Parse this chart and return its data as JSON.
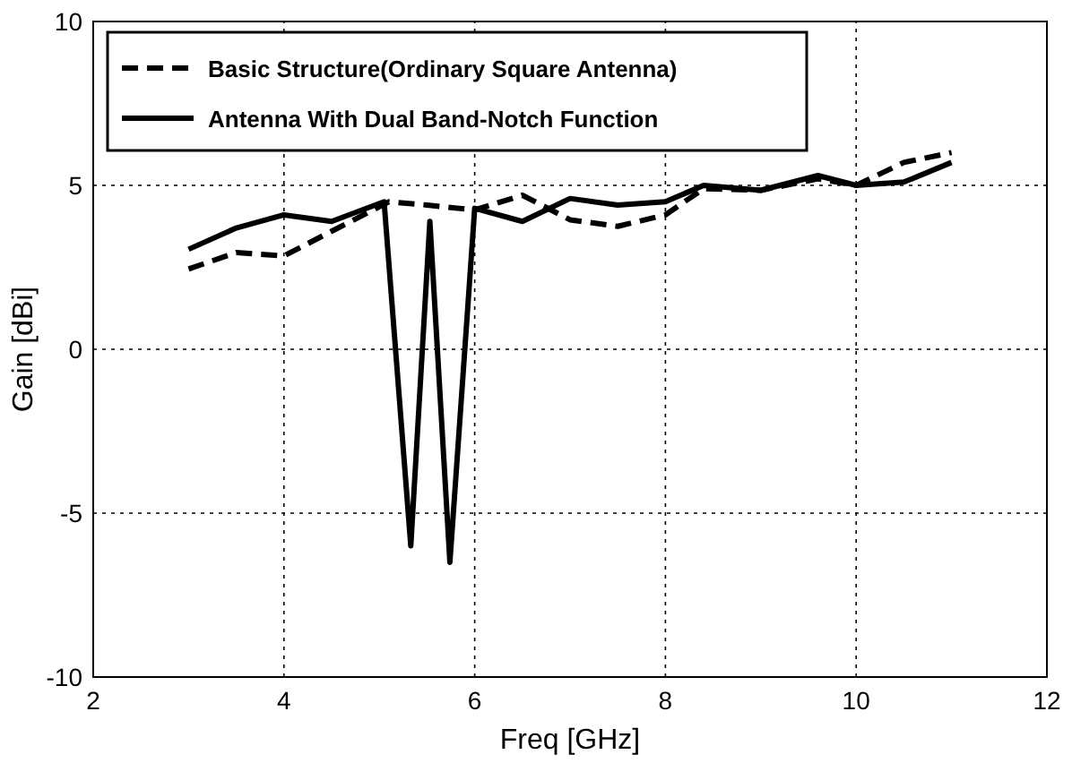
{
  "chart_data": {
    "type": "line",
    "xlabel": "Freq [GHz]",
    "ylabel": "Gain [dBi]",
    "xlim": [
      2,
      12
    ],
    "ylim": [
      -10,
      10
    ],
    "xticks": [
      2,
      4,
      6,
      8,
      10,
      12
    ],
    "yticks": [
      -10,
      -5,
      0,
      5,
      10
    ],
    "grid": true,
    "legend": "top left",
    "series": [
      {
        "name": "Basic Structure(Ordinary Square Antenna)",
        "color": "#000000",
        "line_style": "dashed",
        "x": [
          3,
          3.5,
          4,
          4.5,
          5.1,
          5.5,
          6,
          6.5,
          7,
          7.5,
          8,
          8.4,
          9,
          9.6,
          10,
          10.5,
          11
        ],
        "values": [
          2.45,
          2.95,
          2.85,
          3.6,
          4.5,
          4.4,
          4.25,
          4.7,
          3.95,
          3.75,
          4.1,
          4.9,
          4.85,
          5.2,
          5.0,
          5.7,
          6.0
        ]
      },
      {
        "name": "Antenna With Dual Band-Notch Function",
        "color": "#000000",
        "line_style": "solid",
        "x": [
          3,
          3.5,
          4,
          4.5,
          5.05,
          5.33,
          5.53,
          5.74,
          6.0,
          6.5,
          7,
          7.5,
          8,
          8.4,
          9,
          9.6,
          10,
          10.5,
          11
        ],
        "values": [
          3.05,
          3.7,
          4.1,
          3.9,
          4.5,
          -6.0,
          3.9,
          -6.5,
          4.3,
          3.9,
          4.6,
          4.4,
          4.5,
          5.0,
          4.85,
          5.3,
          5.0,
          5.1,
          5.7
        ]
      }
    ]
  }
}
